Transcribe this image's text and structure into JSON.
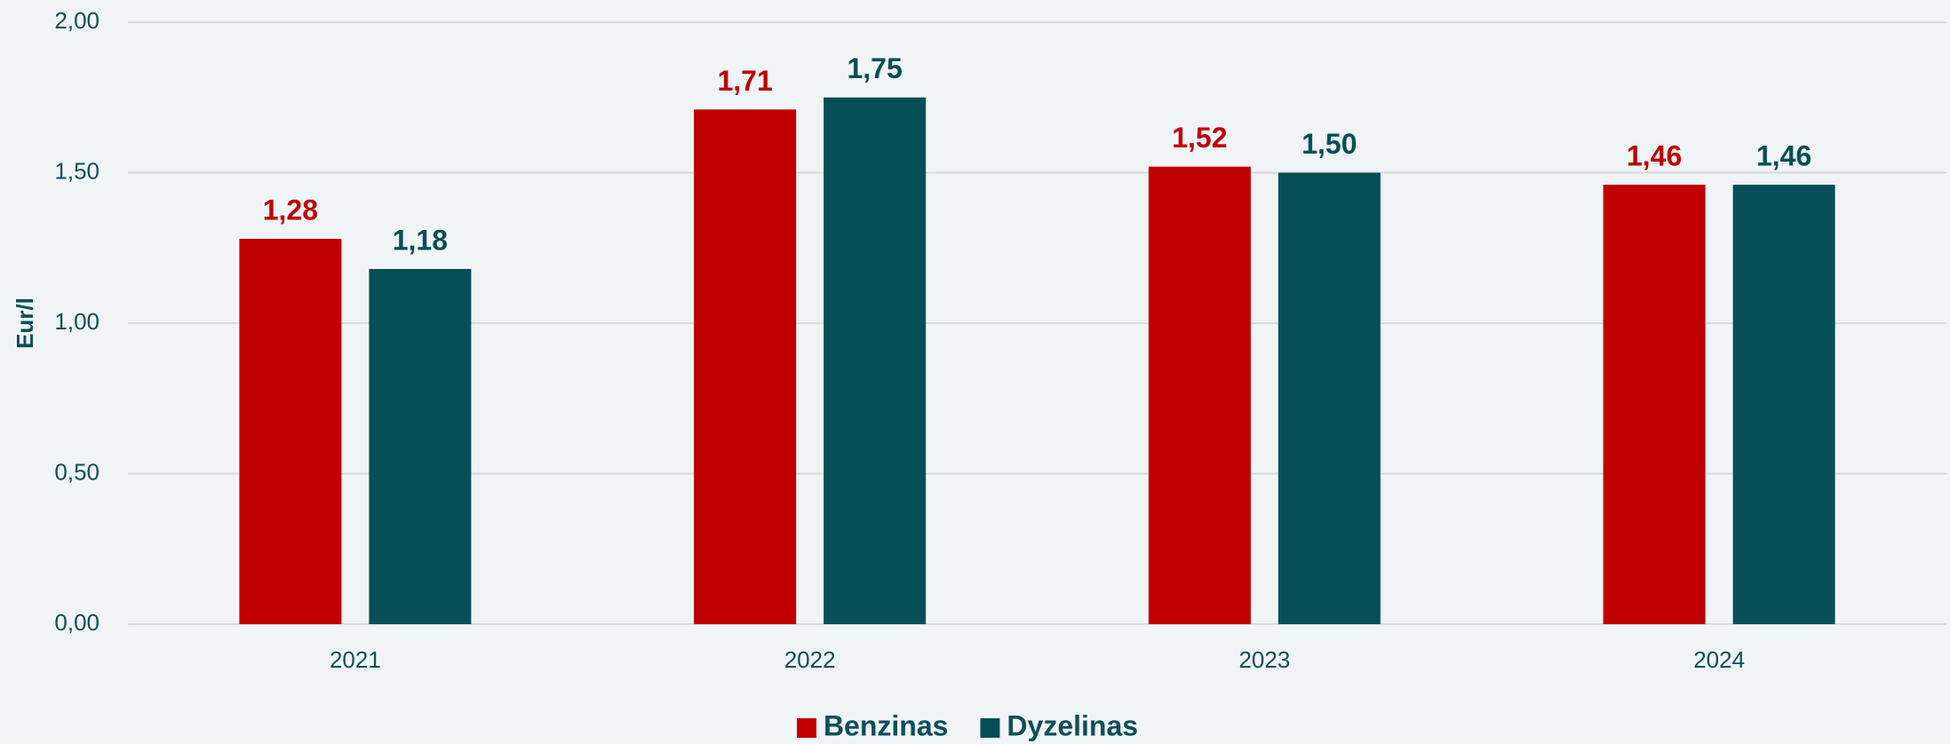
{
  "chart_data": {
    "type": "bar",
    "y_label": "Eur/l",
    "categories": [
      "2021",
      "2022",
      "2023",
      "2024"
    ],
    "series": [
      {
        "name": "Benzinas",
        "color": "#c00000",
        "values": [
          1.28,
          1.71,
          1.52,
          1.46
        ],
        "value_labels": [
          "1,28",
          "1,71",
          "1,52",
          "1,46"
        ]
      },
      {
        "name": "Dyzelinas",
        "color": "#074f57",
        "values": [
          1.18,
          1.75,
          1.5,
          1.46
        ],
        "value_labels": [
          "1,18",
          "1,75",
          "1,50",
          "1,46"
        ]
      }
    ],
    "ylim": [
      0,
      2
    ],
    "yticks": [
      {
        "value": 0,
        "label": "0,00"
      },
      {
        "value": 0.5,
        "label": "0,50"
      },
      {
        "value": 1,
        "label": "1,00"
      },
      {
        "value": 1.5,
        "label": "1,50"
      },
      {
        "value": 2,
        "label": "2,00"
      }
    ],
    "grid": true,
    "legend": "bottom"
  }
}
